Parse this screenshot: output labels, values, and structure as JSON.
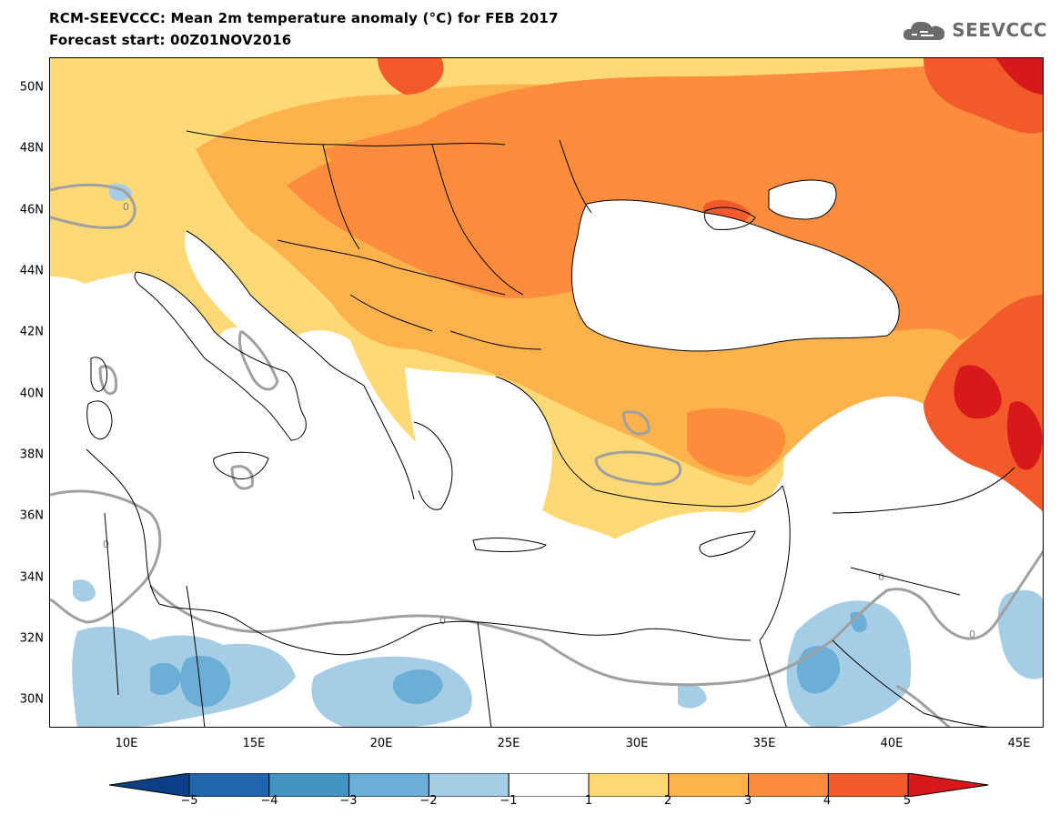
{
  "header": {
    "title": "RCM-SEEVCCC: Mean 2m temperature anomaly (°C) for FEB 2017",
    "subtitle": "Forecast start: 00Z01NOV2016",
    "logo_text": "SEEVCCC"
  },
  "map": {
    "lon_range": [
      7,
      46
    ],
    "lat_range": [
      29,
      51
    ],
    "y_ticks": [
      "50N",
      "48N",
      "46N",
      "44N",
      "42N",
      "40N",
      "38N",
      "36N",
      "34N",
      "32N",
      "30N"
    ],
    "x_ticks": [
      "10E",
      "15E",
      "20E",
      "25E",
      "30E",
      "35E",
      "40E",
      "45E"
    ],
    "contour_label": "0",
    "colors": {
      "sea": "#ffffff",
      "land_neutral": "#ffffff",
      "borders": "#000000",
      "zero_contour": "#a0a0a0"
    }
  },
  "colorbar": {
    "tick_labels": [
      "−5",
      "−4",
      "−3",
      "−2",
      "−1",
      "1",
      "2",
      "3",
      "4",
      "5"
    ],
    "colors": [
      "#0c3f86",
      "#2166ac",
      "#4393c3",
      "#6baed6",
      "#a6cde6",
      "#ffffff",
      "#fed976",
      "#feb24c",
      "#fd8d3c",
      "#f35a2a",
      "#d7191c"
    ]
  }
}
